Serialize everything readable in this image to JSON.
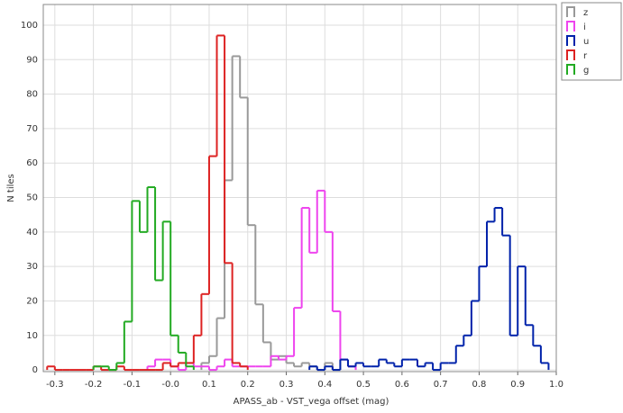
{
  "chart_data": {
    "type": "histogram",
    "xlabel": "APASS_ab - VST_vega offset (mag)",
    "ylabel": "N tiles",
    "xlim": [
      -0.33,
      1.0
    ],
    "ylim": [
      -0.5,
      106
    ],
    "xticks": [
      -0.3,
      -0.2,
      -0.1,
      {
        "value": 0,
        "label": "-0.0"
      },
      0.1,
      0.2,
      0.3,
      0.4,
      0.5,
      0.6,
      0.7,
      0.8,
      0.9,
      {
        "value": 1,
        "label": "1.0"
      }
    ],
    "yticks": [
      0,
      10,
      20,
      30,
      40,
      50,
      60,
      70,
      80,
      90,
      100
    ],
    "grid": true,
    "legend": "outside-top-right",
    "series": [
      {
        "name": "z",
        "color": "#999999",
        "bins": [
          0.08,
          0.1,
          0.12,
          0.14,
          0.16,
          0.18,
          0.2,
          0.22,
          0.24,
          0.26,
          0.28,
          0.3,
          0.32,
          0.34,
          0.36,
          0.38,
          0.4,
          0.42,
          0.44,
          0.46,
          0.48
        ],
        "values": [
          2,
          4,
          15,
          55,
          91,
          79,
          42,
          19,
          8,
          3,
          4,
          2,
          1,
          2,
          1,
          0,
          2,
          0,
          3,
          1
        ]
      },
      {
        "name": "i",
        "color": "#ee44ee",
        "bins": [
          -0.06,
          -0.04,
          -0.02,
          0.0,
          0.02,
          0.04,
          0.06,
          0.08,
          0.1,
          0.12,
          0.14,
          0.16,
          0.18,
          0.2,
          0.22,
          0.24,
          0.26,
          0.28,
          0.3,
          0.32,
          0.34,
          0.36,
          0.38,
          0.4,
          0.42,
          0.44,
          0.46,
          0.48
        ],
        "values": [
          1,
          3,
          3,
          1,
          0,
          2,
          1,
          1,
          0,
          1,
          3,
          1,
          1,
          1,
          1,
          1,
          4,
          3,
          4,
          18,
          47,
          34,
          52,
          40,
          17,
          3,
          1
        ]
      },
      {
        "name": "u",
        "color": "#0022aa",
        "bins": [
          0.36,
          0.38,
          0.4,
          0.42,
          0.44,
          0.46,
          0.48,
          0.5,
          0.52,
          0.54,
          0.56,
          0.58,
          0.6,
          0.62,
          0.64,
          0.66,
          0.68,
          0.7,
          0.72,
          0.74,
          0.76,
          0.78,
          0.8,
          0.82,
          0.84,
          0.86,
          0.88,
          0.9,
          0.92,
          0.94,
          0.96,
          0.98
        ],
        "values": [
          1,
          0,
          1,
          0,
          3,
          1,
          2,
          1,
          1,
          3,
          2,
          1,
          3,
          3,
          1,
          2,
          0,
          2,
          2,
          7,
          10,
          20,
          30,
          43,
          47,
          39,
          10,
          30,
          13,
          7,
          2
        ]
      },
      {
        "name": "r",
        "color": "#dd2222",
        "bins": [
          -0.32,
          -0.3,
          -0.28,
          -0.26,
          -0.24,
          -0.22,
          -0.2,
          -0.18,
          -0.16,
          -0.14,
          -0.12,
          -0.1,
          -0.08,
          -0.06,
          -0.04,
          -0.02,
          0.0,
          0.02,
          0.04,
          0.06,
          0.08,
          0.1,
          0.12,
          0.14,
          0.16,
          0.18,
          0.2
        ],
        "values": [
          1,
          0,
          0,
          0,
          0,
          0,
          1,
          0,
          0,
          1,
          0,
          0,
          0,
          0,
          0,
          2,
          1,
          2,
          2,
          10,
          22,
          62,
          97,
          31,
          2,
          1
        ]
      },
      {
        "name": "g",
        "color": "#22aa22",
        "bins": [
          -0.2,
          -0.18,
          -0.16,
          -0.14,
          -0.12,
          -0.1,
          -0.08,
          -0.06,
          -0.04,
          -0.02,
          0.0,
          0.02,
          0.04,
          0.06
        ],
        "values": [
          1,
          1,
          0,
          2,
          14,
          49,
          40,
          53,
          26,
          43,
          10,
          5,
          1
        ]
      }
    ]
  }
}
